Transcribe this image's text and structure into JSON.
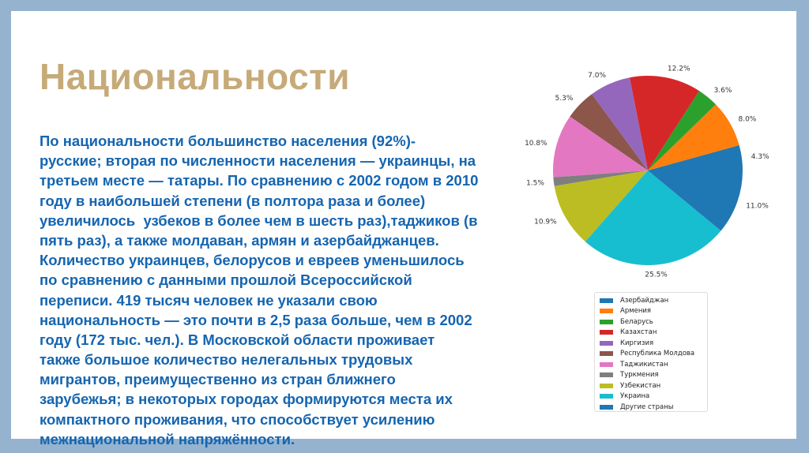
{
  "title": "Национальности",
  "body_lines": [
    "По национальности большинство населения (92%)-",
    "русские; вторая по численности населения — украинцы, на",
    "третьем месте — татары. По сравнению с 2002 годом в 2010",
    "году в наибольшей степени (в полтора раза и более)",
    "увеличилось  узбеков в более чем в шесть раз),таджиков (в",
    "пять раз), а также молдаван, армян и азербайджанцев.",
    "Количество украинцев, белорусов и евреев уменьшилось",
    "по сравнению с данными прошлой Всероссийской",
    "переписи. 419 тысяч человек не указали свою",
    "национальность — это почти в 2,5 раза больше, чем в 2002",
    "году (172 тыс. чел.). В Московской области проживает",
    "также большое количество нелегальных трудовых",
    "мигрантов, преимущественно из стран ближнего",
    "зарубежья; в некоторых городах формируются места их",
    "компактного проживания, что способствует усилению",
    "межнациональной напряжённости."
  ],
  "chart_data": {
    "type": "pie",
    "start_angle": 0,
    "direction": "counterclockwise",
    "legend_position": "bottom",
    "categories": [
      "Азербайджан",
      "Армения",
      "Беларусь",
      "Казахстан",
      "Киргизия",
      "Республика Молдова",
      "Таджикистан",
      "Туркмения",
      "Узбекистан",
      "Украина",
      "Другие страны"
    ],
    "values": [
      4.3,
      8.0,
      3.6,
      12.2,
      7.0,
      5.3,
      10.8,
      1.5,
      10.9,
      25.5,
      11.0
    ],
    "labels": [
      "4.3%",
      "8.0%",
      "3.6%",
      "12.2%",
      "7.0%",
      "5.3%",
      "10.8%",
      "1.5%",
      "10.9%",
      "25.5%",
      "11.0%"
    ],
    "colors": [
      "#1f77b4",
      "#ff7f0e",
      "#2ca02c",
      "#d62728",
      "#9467bd",
      "#8c564b",
      "#e377c2",
      "#7f7f7f",
      "#bcbd22",
      "#17becf",
      "#1f77b4"
    ]
  }
}
